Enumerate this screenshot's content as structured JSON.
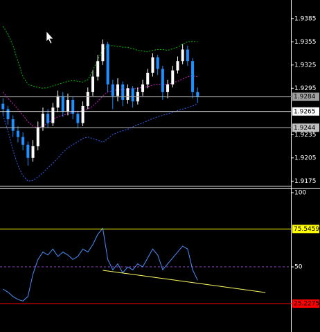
{
  "chart_data": [
    {
      "type": "candlestick",
      "xlim": [
        -0.6,
        57.7
      ],
      "ylim": [
        1.9169,
        1.9409
      ],
      "yticks": [
        1.9385,
        1.9355,
        1.9325,
        1.9295,
        1.9235,
        1.9205,
        1.9175
      ],
      "up_color": "#ffffff",
      "down_color": "#1e90ff",
      "open": [
        1.9275,
        1.9268,
        1.9255,
        1.924,
        1.9232,
        1.9222,
        1.9205,
        1.922,
        1.9245,
        1.9262,
        1.925,
        1.927,
        1.9285,
        1.9265,
        1.928,
        1.9262,
        1.925,
        1.9272,
        1.929,
        1.931,
        1.933,
        1.9352,
        1.93,
        1.9285,
        1.93,
        1.928,
        1.9295,
        1.9278,
        1.929,
        1.93,
        1.9315,
        1.9335,
        1.932,
        1.929,
        1.93,
        1.9318,
        1.933,
        1.9345,
        1.933,
        1.929
      ],
      "high": [
        1.9282,
        1.9272,
        1.926,
        1.9246,
        1.9238,
        1.9226,
        1.9228,
        1.9252,
        1.927,
        1.9268,
        1.9276,
        1.9292,
        1.929,
        1.9288,
        1.9284,
        1.9266,
        1.9278,
        1.9296,
        1.9318,
        1.9338,
        1.9358,
        1.9355,
        1.9306,
        1.9308,
        1.9304,
        1.93,
        1.9298,
        1.9296,
        1.9306,
        1.932,
        1.934,
        1.9338,
        1.9324,
        1.9306,
        1.9324,
        1.9336,
        1.9352,
        1.935,
        1.9334,
        1.9296
      ],
      "low": [
        1.926,
        1.9248,
        1.9232,
        1.9225,
        1.9215,
        1.9195,
        1.92,
        1.9215,
        1.924,
        1.9244,
        1.9246,
        1.9264,
        1.9258,
        1.926,
        1.9255,
        1.9243,
        1.9246,
        1.9268,
        1.9285,
        1.9305,
        1.9325,
        1.929,
        1.9268,
        1.9278,
        1.9272,
        1.9275,
        1.927,
        1.9274,
        1.9285,
        1.9295,
        1.931,
        1.9312,
        1.928,
        1.9282,
        1.9296,
        1.9314,
        1.9326,
        1.9324,
        1.9282,
        1.9276
      ],
      "close": [
        1.9268,
        1.9255,
        1.924,
        1.9232,
        1.9222,
        1.9205,
        1.922,
        1.9245,
        1.9262,
        1.925,
        1.927,
        1.9285,
        1.9265,
        1.928,
        1.9262,
        1.925,
        1.9272,
        1.929,
        1.931,
        1.933,
        1.9352,
        1.93,
        1.9285,
        1.93,
        1.928,
        1.9295,
        1.9278,
        1.929,
        1.93,
        1.9315,
        1.9335,
        1.932,
        1.929,
        1.93,
        1.9318,
        1.933,
        1.9345,
        1.933,
        1.929,
        1.9284
      ],
      "series": [
        {
          "color": "#00c000",
          "dash": true,
          "values": [
            1.9375,
            1.9365,
            1.935,
            1.933,
            1.931,
            1.93,
            1.9298,
            1.9296,
            1.9295,
            1.9296,
            1.9298,
            1.93,
            1.9302,
            1.9304,
            1.9305,
            1.9304,
            1.9303,
            1.9306,
            1.9318,
            1.9332,
            1.9345,
            1.935,
            1.935,
            1.9349,
            1.9348,
            1.9348,
            1.9346,
            1.9344,
            1.9343,
            1.9342,
            1.9344,
            1.9345,
            1.9345,
            1.9344,
            1.9346,
            1.9348,
            1.9352,
            1.9355,
            1.9356,
            1.9355
          ]
        },
        {
          "color": "#d020d0",
          "dash": true,
          "values": [
            1.929,
            1.9282,
            1.9275,
            1.9268,
            1.926,
            1.9252,
            1.9246,
            1.9244,
            1.9246,
            1.925,
            1.9255,
            1.9258,
            1.926,
            1.9262,
            1.9264,
            1.9265,
            1.9266,
            1.9268,
            1.9272,
            1.9278,
            1.9285,
            1.929,
            1.9292,
            1.9293,
            1.9293,
            1.9294,
            1.9294,
            1.9295,
            1.9296,
            1.9297,
            1.9299,
            1.93,
            1.93,
            1.93,
            1.9302,
            1.9304,
            1.9307,
            1.931,
            1.9311,
            1.931
          ]
        },
        {
          "color": "#3060ff",
          "dash": true,
          "values": [
            1.926,
            1.924,
            1.9215,
            1.9195,
            1.9182,
            1.9175,
            1.9176,
            1.918,
            1.9186,
            1.9192,
            1.9198,
            1.9205,
            1.9212,
            1.9218,
            1.9222,
            1.9226,
            1.923,
            1.9232,
            1.923,
            1.9228,
            1.9225,
            1.923,
            1.9235,
            1.9238,
            1.924,
            1.9242,
            1.9245,
            1.9248,
            1.925,
            1.9253,
            1.9256,
            1.9258,
            1.926,
            1.9262,
            1.9264,
            1.9266,
            1.9268,
            1.927,
            1.9272,
            1.9275
          ]
        }
      ],
      "levels": [
        1.9284,
        1.9265,
        1.9244
      ],
      "level_colors": [
        "#a0a0a0",
        "#ffffff",
        "#c0c0c0"
      ]
    },
    {
      "type": "line",
      "xlim": [
        -0.6,
        57.7
      ],
      "ylim": [
        6.1,
        102.8
      ],
      "yticks": [
        100,
        50
      ],
      "midline": 50,
      "series": [
        {
          "color": "#4a90ff",
          "values": [
            35,
            33,
            30,
            28,
            27,
            30,
            45,
            55,
            60,
            58,
            62,
            57,
            60,
            58,
            55,
            57,
            62,
            60,
            65,
            72,
            76,
            55,
            48,
            52,
            46,
            50,
            48,
            52,
            50,
            56,
            62,
            58,
            48,
            52,
            56,
            60,
            64,
            62,
            48,
            41
          ]
        }
      ],
      "trendline": {
        "x": [
          20,
          52.6
        ],
        "values": [
          47.7,
          32.7
        ],
        "color": "#ffff66"
      },
      "levels": [
        75.5459,
        25.2275
      ],
      "level_colors": [
        "#ffff00",
        "#ff0000"
      ]
    }
  ]
}
